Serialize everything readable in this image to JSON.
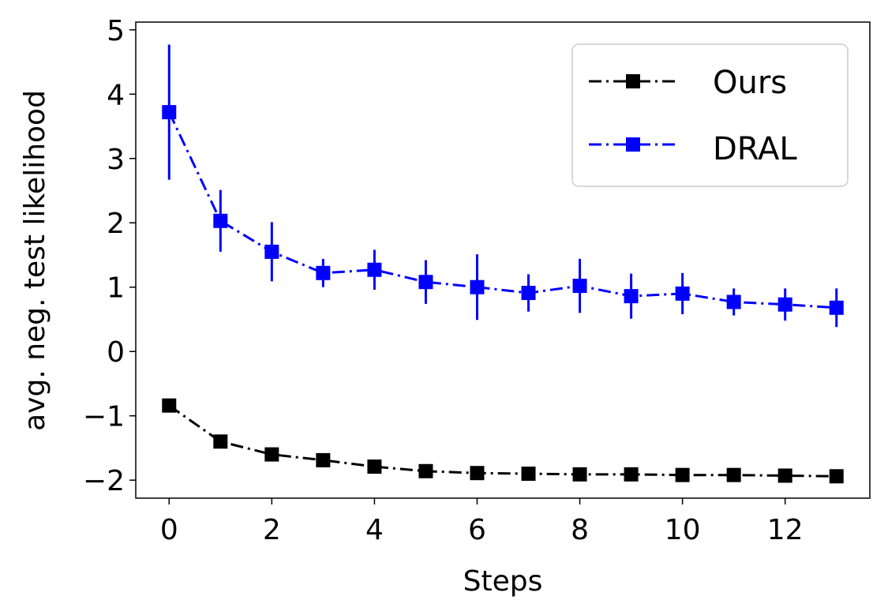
{
  "chart_data": {
    "type": "line",
    "title": "",
    "xlabel": "Steps",
    "ylabel": "avg. neg. test likelihood",
    "xlim": [
      -0.65,
      13.65
    ],
    "ylim": [
      -2.28,
      5.12
    ],
    "x_ticks": [
      0,
      2,
      4,
      6,
      8,
      10,
      12
    ],
    "y_ticks": [
      -2,
      -1,
      0,
      1,
      2,
      3,
      4,
      5
    ],
    "y_tick_labels": [
      "−2",
      "−1",
      "0",
      "1",
      "2",
      "3",
      "4",
      "5"
    ],
    "x_tick_labels": [
      "0",
      "2",
      "4",
      "6",
      "8",
      "10",
      "12"
    ],
    "legend_position": "top-right",
    "grid": false,
    "x": [
      0,
      1,
      2,
      3,
      4,
      5,
      6,
      7,
      8,
      9,
      10,
      11,
      12,
      13
    ],
    "series": [
      {
        "name": "Ours",
        "color": "#000000",
        "linestyle": "dash-dot",
        "marker": "square",
        "values": [
          -0.84,
          -1.4,
          -1.6,
          -1.69,
          -1.79,
          -1.86,
          -1.89,
          -1.9,
          -1.91,
          -1.91,
          -1.92,
          -1.92,
          -1.93,
          -1.94
        ],
        "errors": [
          0.05,
          0.1,
          0.06,
          0.05,
          0.05,
          0.04,
          0.04,
          0.04,
          0.04,
          0.04,
          0.04,
          0.04,
          0.04,
          0.04
        ]
      },
      {
        "name": "DRAL",
        "color": "#0000ff",
        "linestyle": "dash-dot",
        "marker": "square",
        "values": [
          3.72,
          2.03,
          1.55,
          1.22,
          1.27,
          1.08,
          1.0,
          0.91,
          1.02,
          0.86,
          0.9,
          0.77,
          0.73,
          0.68
        ],
        "errors": [
          1.05,
          0.48,
          0.46,
          0.22,
          0.31,
          0.34,
          0.51,
          0.29,
          0.42,
          0.35,
          0.32,
          0.21,
          0.25,
          0.3
        ]
      }
    ]
  }
}
